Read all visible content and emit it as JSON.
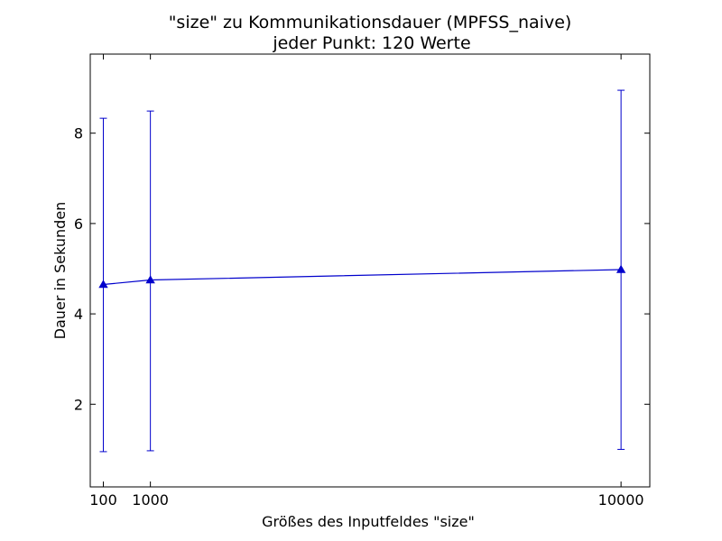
{
  "chart_data": {
    "type": "line",
    "title": "\"size\" zu Kommunikationsdauer (MPFSS_naive)",
    "subtitle": "jeder Punkt: 120 Werte",
    "xlabel": "Größes des Inputfeldes \"size\"",
    "ylabel": "Dauer in Sekunden",
    "xlim": [
      -150,
      10550
    ],
    "ylim": [
      0.17,
      9.75
    ],
    "x_ticks": [
      100,
      1000,
      10000
    ],
    "y_ticks": [
      2,
      4,
      6,
      8
    ],
    "grid": false,
    "legend": "none",
    "color": "#0000cc",
    "marker": "triangle-up",
    "series": [
      {
        "x": [
          100,
          1000,
          10000
        ],
        "y": [
          4.65,
          4.75,
          4.98
        ],
        "err_low": [
          0.95,
          0.97,
          1.0
        ],
        "err_high": [
          8.33,
          8.49,
          8.95
        ]
      }
    ]
  }
}
